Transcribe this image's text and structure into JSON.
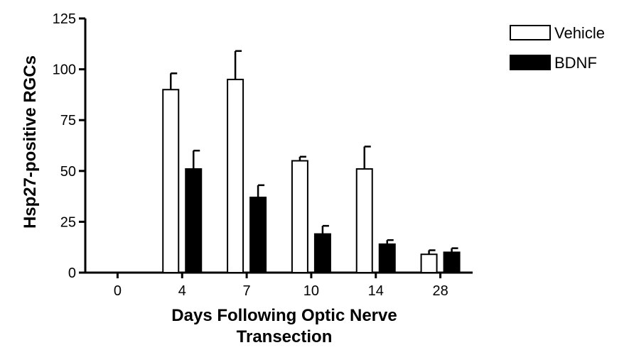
{
  "chart_data": {
    "type": "bar",
    "categories": [
      "0",
      "4",
      "7",
      "10",
      "14",
      "28"
    ],
    "series": [
      {
        "name": "Vehicle",
        "values": [
          0,
          90,
          95,
          55,
          51,
          9
        ],
        "errors": [
          0,
          8,
          14,
          2,
          11,
          2
        ],
        "color": "#ffffff"
      },
      {
        "name": "BDNF",
        "values": [
          0,
          51,
          37,
          19,
          14,
          10
        ],
        "errors": [
          0,
          9,
          6,
          4,
          2,
          2
        ],
        "color": "#000000"
      }
    ],
    "xlabel": [
      "Days Following Optic Nerve",
      "Transection"
    ],
    "ylabel": "Hsp27-positive RGCs",
    "ylim": [
      0,
      125
    ],
    "yticks": [
      "0",
      "25",
      "50",
      "75",
      "100",
      "125"
    ],
    "legend_position": "top-right",
    "grid": false
  }
}
